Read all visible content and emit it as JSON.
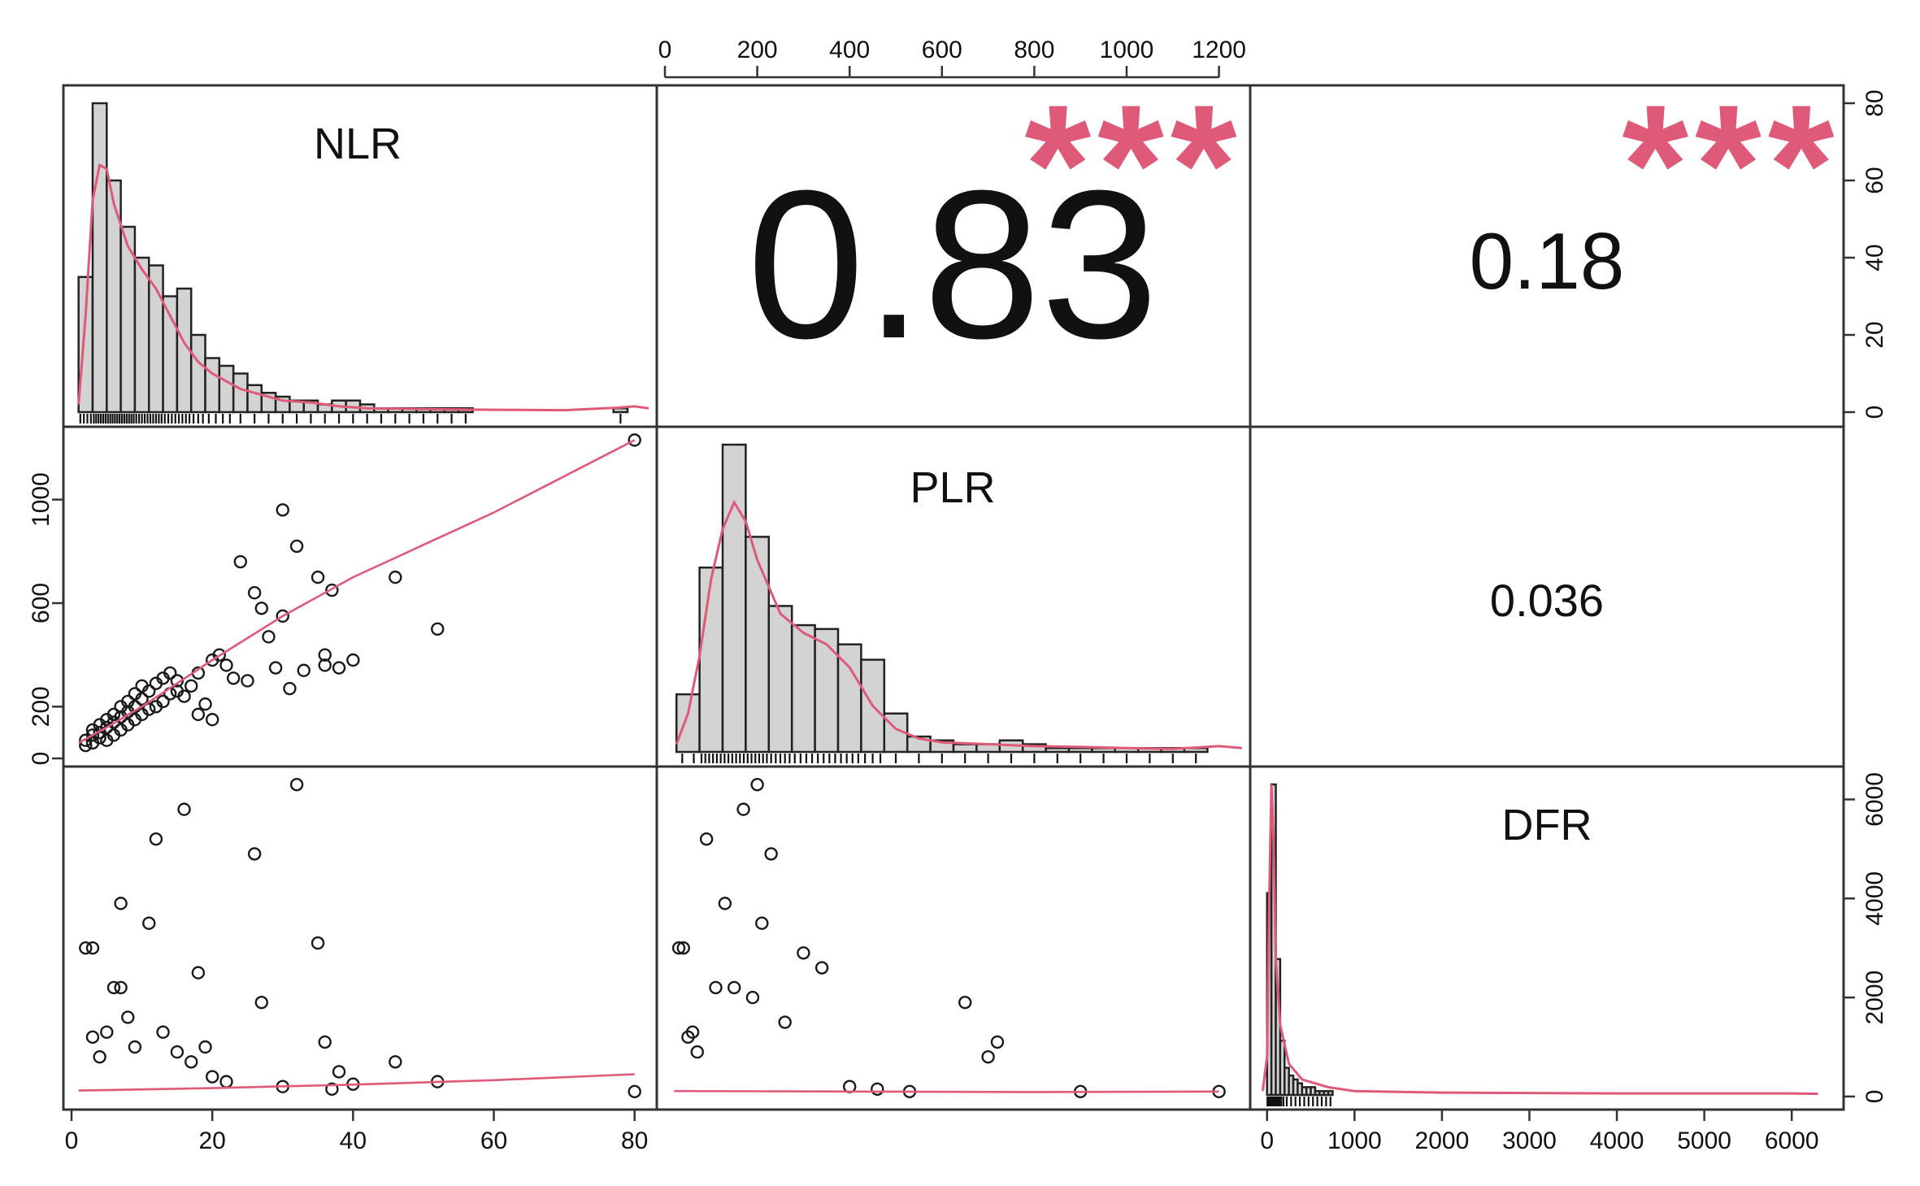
{
  "colors": {
    "accent": "#df5a78",
    "bar_fill": "#d3d3d3",
    "ink": "#111111"
  },
  "chart_data": {
    "type": "scatter",
    "subtype": "scatterplot-matrix",
    "title": "",
    "variables": [
      "NLR",
      "PLR",
      "DFR"
    ],
    "correlations": [
      {
        "pair": [
          "NLR",
          "PLR"
        ],
        "r": "0.83",
        "stars": "***"
      },
      {
        "pair": [
          "NLR",
          "DFR"
        ],
        "r": "0.18",
        "stars": "***"
      },
      {
        "pair": [
          "PLR",
          "DFR"
        ],
        "r": "0.036",
        "stars": ""
      }
    ],
    "axes": {
      "NLR": {
        "range": [
          0,
          82
        ],
        "ticks": [
          "0",
          "20",
          "40",
          "60",
          "80"
        ]
      },
      "PLR": {
        "range": [
          0,
          1250
        ],
        "ticks": [
          "0",
          "200",
          "400",
          "600",
          "800",
          "1000",
          "1200"
        ],
        "left_ticks": [
          "0",
          "200",
          "600",
          "1000"
        ]
      },
      "DFR": {
        "range": [
          -100,
          6500
        ],
        "ticks": [
          "0",
          "1000",
          "2000",
          "3000",
          "4000",
          "5000",
          "6000"
        ],
        "right_ticks": [
          "0",
          "2000",
          "4000",
          "6000"
        ]
      },
      "histogram_count": {
        "range": [
          0,
          80
        ],
        "ticks": [
          "0",
          "20",
          "40",
          "60",
          "80"
        ]
      }
    },
    "histograms": {
      "NLR": {
        "bin_width": 2,
        "bin_start": 1,
        "counts": [
          35,
          80,
          60,
          48,
          40,
          38,
          30,
          32,
          20,
          14,
          12,
          10,
          7,
          5,
          4,
          3,
          3,
          2,
          3,
          3,
          2,
          1,
          1,
          1,
          1,
          1,
          1,
          1,
          0,
          0,
          0,
          0,
          0,
          0,
          0,
          0,
          0,
          0,
          1,
          0
        ],
        "density": [
          [
            1,
            2
          ],
          [
            2,
            25
          ],
          [
            3,
            55
          ],
          [
            4,
            64
          ],
          [
            5,
            63
          ],
          [
            6,
            54
          ],
          [
            8,
            43
          ],
          [
            10,
            37
          ],
          [
            12,
            32
          ],
          [
            14,
            25
          ],
          [
            16,
            18
          ],
          [
            18,
            13
          ],
          [
            20,
            10
          ],
          [
            22,
            8
          ],
          [
            24,
            6
          ],
          [
            26,
            5
          ],
          [
            28,
            4
          ],
          [
            30,
            3
          ],
          [
            34,
            2.5
          ],
          [
            38,
            1.5
          ],
          [
            42,
            1
          ],
          [
            50,
            0.8
          ],
          [
            60,
            0.6
          ],
          [
            70,
            0.5
          ],
          [
            78,
            1.2
          ],
          [
            80,
            1.5
          ],
          [
            82,
            1
          ]
        ]
      },
      "PLR": {
        "bin_width": 50,
        "bin_start": 25,
        "counts": [
          15,
          48,
          80,
          56,
          38,
          33,
          32,
          28,
          24,
          10,
          4,
          3,
          2,
          2,
          3,
          2,
          1,
          1,
          1,
          1,
          1,
          1,
          1,
          0,
          0
        ],
        "density": [
          [
            25,
            2
          ],
          [
            50,
            10
          ],
          [
            75,
            25
          ],
          [
            100,
            45
          ],
          [
            125,
            58
          ],
          [
            150,
            65
          ],
          [
            175,
            60
          ],
          [
            200,
            50
          ],
          [
            250,
            36
          ],
          [
            300,
            31
          ],
          [
            350,
            28
          ],
          [
            400,
            22
          ],
          [
            450,
            12
          ],
          [
            500,
            6
          ],
          [
            550,
            3.5
          ],
          [
            600,
            2.5
          ],
          [
            700,
            2
          ],
          [
            800,
            1.5
          ],
          [
            900,
            1.3
          ],
          [
            1000,
            1
          ],
          [
            1100,
            0.8
          ],
          [
            1200,
            1.5
          ],
          [
            1250,
            1
          ]
        ]
      },
      "DFR": {
        "bin_width": 50,
        "bin_start": 0,
        "counts": [
          52,
          80,
          35,
          14,
          7,
          5,
          4,
          3,
          2,
          2,
          2,
          1,
          1,
          1,
          1
        ],
        "density": [
          [
            -50,
            1
          ],
          [
            0,
            10
          ],
          [
            25,
            50
          ],
          [
            50,
            80
          ],
          [
            75,
            65
          ],
          [
            100,
            35
          ],
          [
            150,
            18
          ],
          [
            250,
            8
          ],
          [
            400,
            4
          ],
          [
            700,
            2
          ],
          [
            1000,
            1
          ],
          [
            2000,
            0.6
          ],
          [
            3000,
            0.5
          ],
          [
            4000,
            0.4
          ],
          [
            5000,
            0.4
          ],
          [
            6000,
            0.4
          ],
          [
            6300,
            0.3
          ]
        ]
      }
    },
    "scatter_points": {
      "NLR_PLR": [
        [
          2,
          50
        ],
        [
          2,
          70
        ],
        [
          3,
          60
        ],
        [
          3,
          90
        ],
        [
          3,
          110
        ],
        [
          4,
          80
        ],
        [
          4,
          100
        ],
        [
          4,
          130
        ],
        [
          5,
          70
        ],
        [
          5,
          120
        ],
        [
          5,
          150
        ],
        [
          6,
          90
        ],
        [
          6,
          140
        ],
        [
          6,
          170
        ],
        [
          7,
          110
        ],
        [
          7,
          160
        ],
        [
          7,
          200
        ],
        [
          8,
          130
        ],
        [
          8,
          180
        ],
        [
          8,
          220
        ],
        [
          9,
          150
        ],
        [
          9,
          200
        ],
        [
          9,
          250
        ],
        [
          10,
          170
        ],
        [
          10,
          230
        ],
        [
          10,
          280
        ],
        [
          11,
          190
        ],
        [
          11,
          260
        ],
        [
          12,
          200
        ],
        [
          12,
          290
        ],
        [
          13,
          220
        ],
        [
          13,
          310
        ],
        [
          14,
          250
        ],
        [
          14,
          330
        ],
        [
          15,
          260
        ],
        [
          15,
          300
        ],
        [
          16,
          240
        ],
        [
          17,
          280
        ],
        [
          18,
          170
        ],
        [
          18,
          330
        ],
        [
          19,
          210
        ],
        [
          20,
          380
        ],
        [
          20,
          150
        ],
        [
          21,
          400
        ],
        [
          22,
          360
        ],
        [
          23,
          310
        ],
        [
          24,
          760
        ],
        [
          25,
          300
        ],
        [
          26,
          640
        ],
        [
          27,
          580
        ],
        [
          28,
          470
        ],
        [
          29,
          350
        ],
        [
          30,
          960
        ],
        [
          30,
          550
        ],
        [
          31,
          270
        ],
        [
          32,
          820
        ],
        [
          33,
          340
        ],
        [
          35,
          700
        ],
        [
          36,
          360
        ],
        [
          36,
          400
        ],
        [
          37,
          650
        ],
        [
          38,
          350
        ],
        [
          40,
          380
        ],
        [
          46,
          700
        ],
        [
          52,
          500
        ],
        [
          80,
          1230
        ]
      ],
      "NLR_DFR": [
        [
          2,
          3000
        ],
        [
          3,
          3000
        ],
        [
          3,
          1200
        ],
        [
          4,
          800
        ],
        [
          5,
          1300
        ],
        [
          6,
          2200
        ],
        [
          7,
          2200
        ],
        [
          7,
          3900
        ],
        [
          8,
          1600
        ],
        [
          9,
          1000
        ],
        [
          11,
          3500
        ],
        [
          12,
          5200
        ],
        [
          13,
          1300
        ],
        [
          15,
          900
        ],
        [
          16,
          5800
        ],
        [
          17,
          700
        ],
        [
          18,
          2500
        ],
        [
          19,
          1000
        ],
        [
          20,
          400
        ],
        [
          22,
          300
        ],
        [
          26,
          4900
        ],
        [
          27,
          1900
        ],
        [
          30,
          200
        ],
        [
          32,
          6300
        ],
        [
          35,
          3100
        ],
        [
          36,
          1100
        ],
        [
          37,
          150
        ],
        [
          38,
          500
        ],
        [
          40,
          250
        ],
        [
          46,
          700
        ],
        [
          52,
          300
        ],
        [
          80,
          100
        ]
      ],
      "PLR_DFR": [
        [
          30,
          3000
        ],
        [
          40,
          3000
        ],
        [
          50,
          1200
        ],
        [
          60,
          1300
        ],
        [
          70,
          900
        ],
        [
          90,
          5200
        ],
        [
          110,
          2200
        ],
        [
          130,
          3900
        ],
        [
          150,
          2200
        ],
        [
          170,
          5800
        ],
        [
          190,
          2000
        ],
        [
          200,
          6300
        ],
        [
          210,
          3500
        ],
        [
          230,
          4900
        ],
        [
          260,
          1500
        ],
        [
          300,
          2900
        ],
        [
          340,
          2600
        ],
        [
          400,
          200
        ],
        [
          460,
          150
        ],
        [
          530,
          100
        ],
        [
          650,
          1900
        ],
        [
          700,
          800
        ],
        [
          720,
          1100
        ],
        [
          900,
          100
        ],
        [
          1200,
          100
        ]
      ]
    },
    "fit_lines": {
      "NLR_PLR": [
        [
          1,
          60
        ],
        [
          5,
          120
        ],
        [
          10,
          200
        ],
        [
          15,
          290
        ],
        [
          20,
          380
        ],
        [
          30,
          550
        ],
        [
          40,
          700
        ],
        [
          60,
          950
        ],
        [
          80,
          1230
        ]
      ],
      "NLR_DFR": [
        [
          1,
          120
        ],
        [
          20,
          170
        ],
        [
          40,
          240
        ],
        [
          60,
          330
        ],
        [
          80,
          450
        ]
      ],
      "PLR_DFR": [
        [
          20,
          110
        ],
        [
          400,
          100
        ],
        [
          800,
          90
        ],
        [
          1200,
          100
        ]
      ]
    }
  }
}
